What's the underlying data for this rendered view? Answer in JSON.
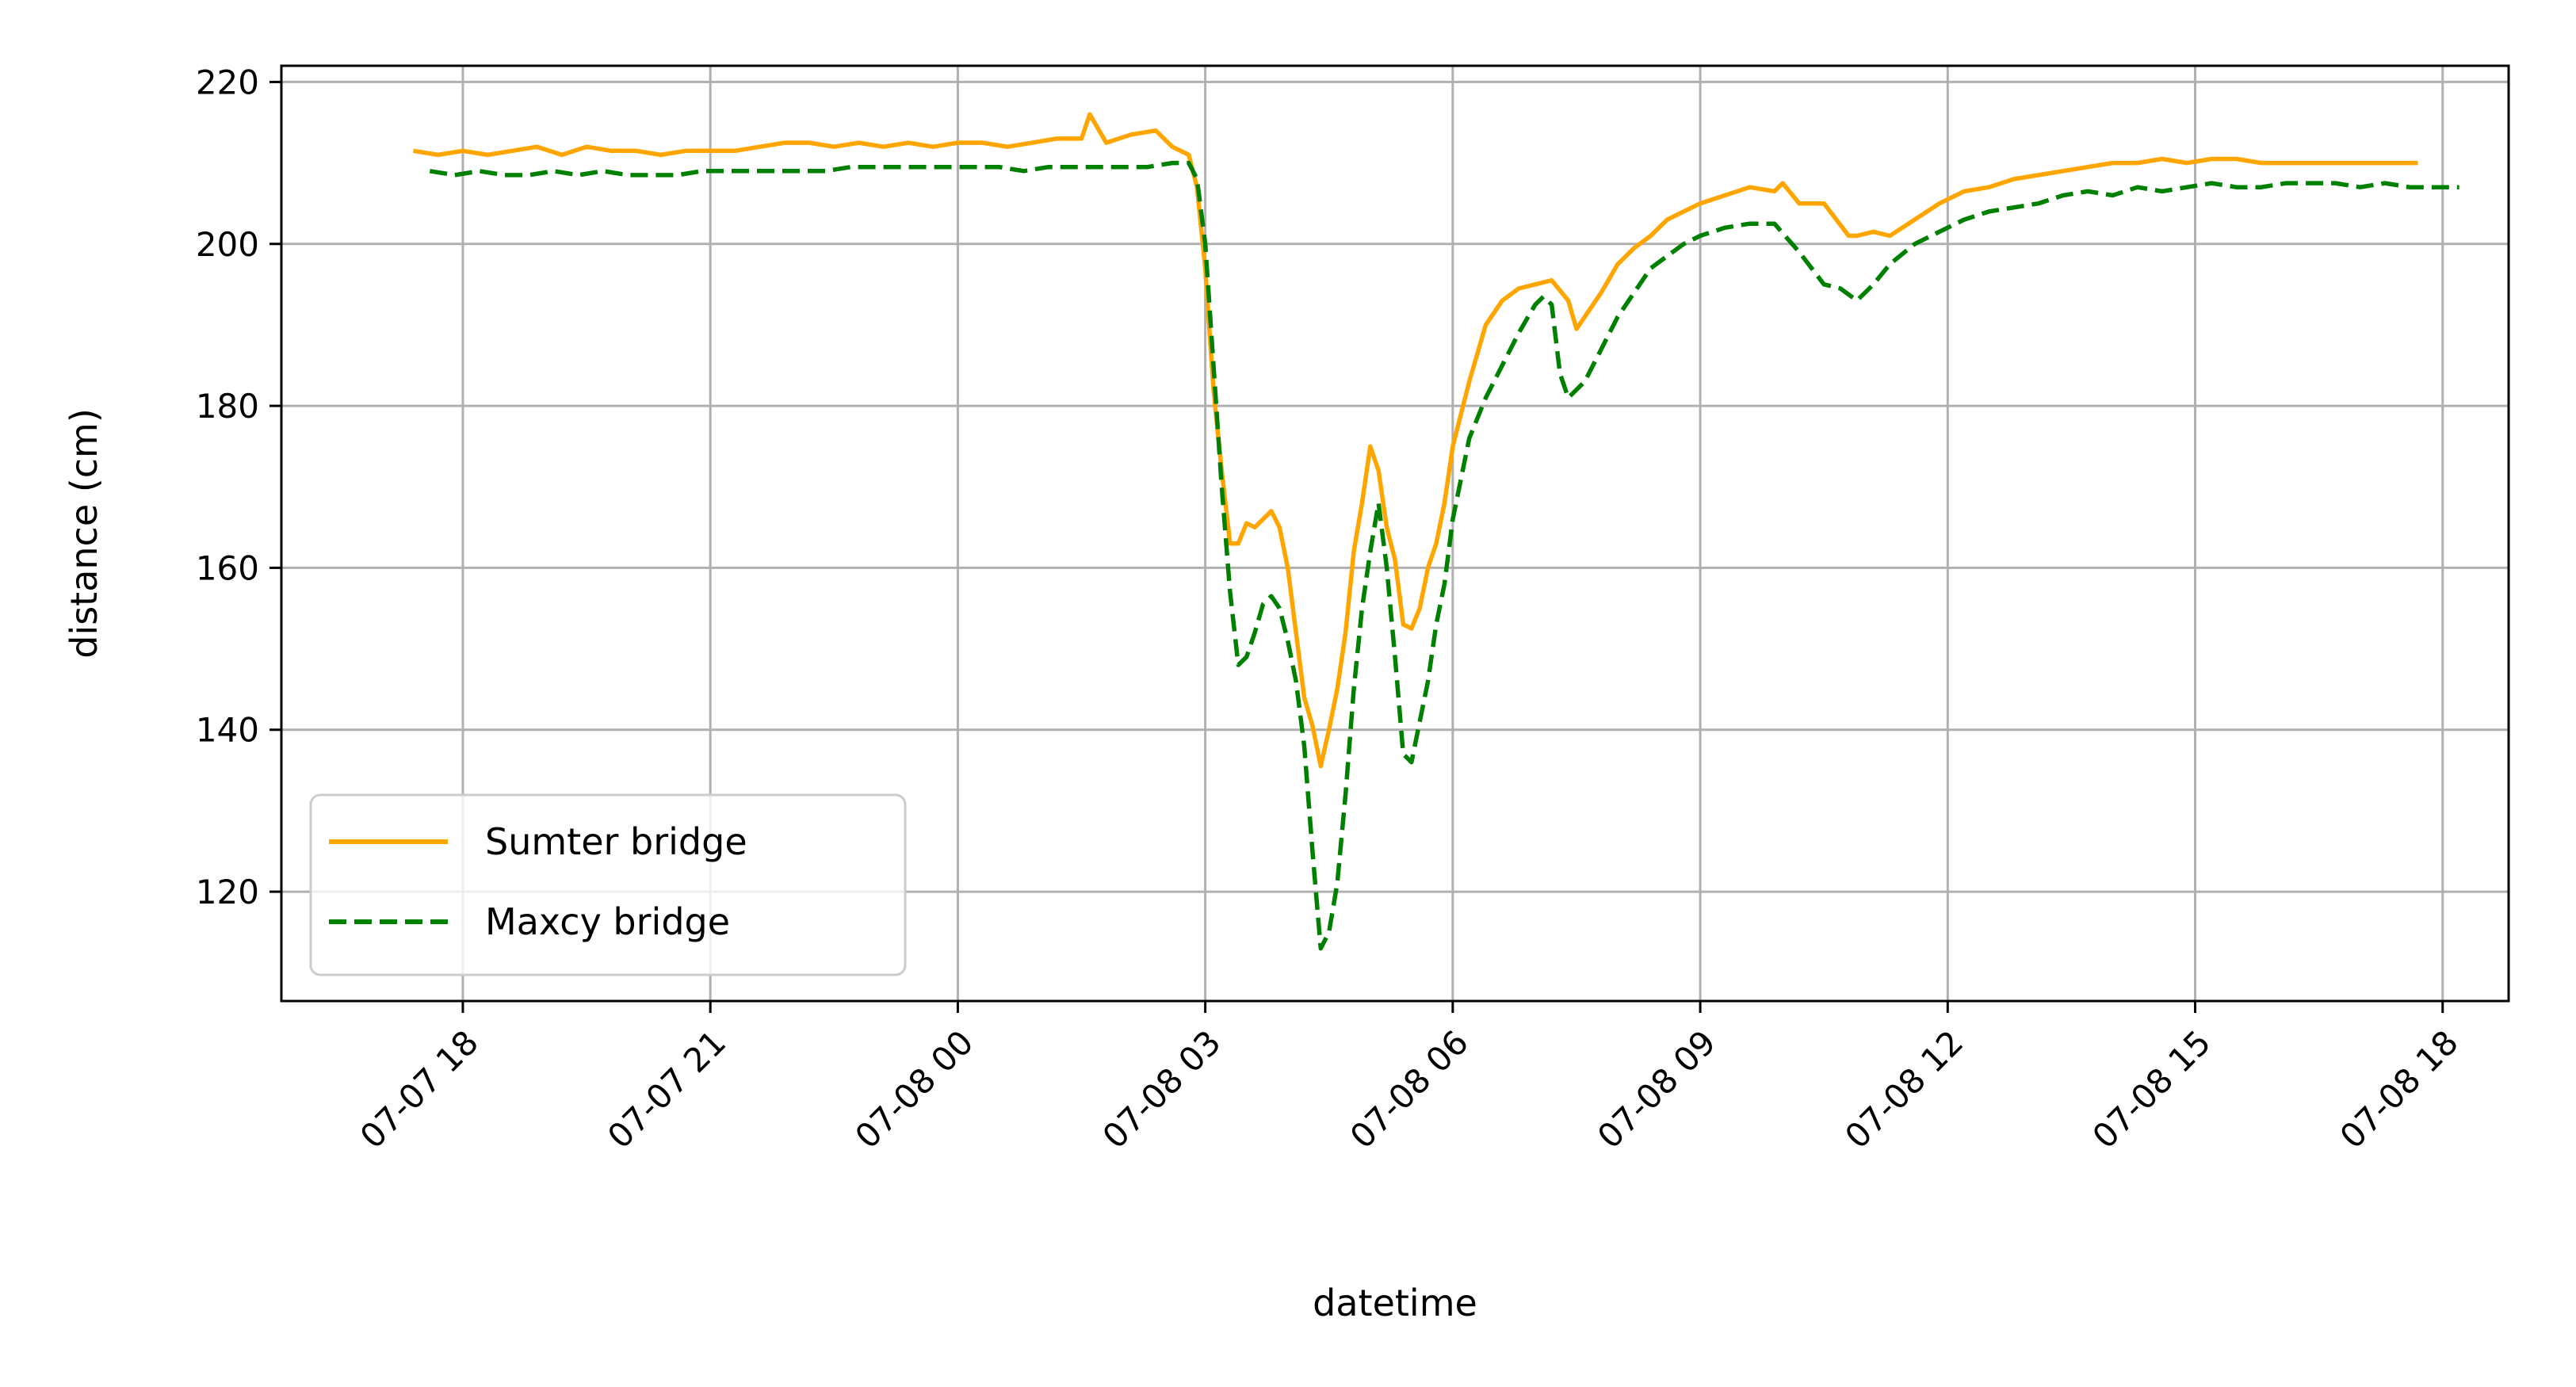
{
  "chart_data": {
    "type": "line",
    "xlabel": "datetime",
    "ylabel": "distance (cm)",
    "x_tick_labels": [
      "07-07 18",
      "07-07 21",
      "07-08 00",
      "07-08 03",
      "07-08 06",
      "07-08 09",
      "07-08 12",
      "07-08 15",
      "07-08 18"
    ],
    "x_tick_hours": [
      18,
      21,
      24,
      27,
      30,
      33,
      36,
      39,
      42
    ],
    "x_tick_rotation": 45,
    "y_ticks": [
      120,
      140,
      160,
      180,
      200,
      220
    ],
    "y_tick_labels": [
      "120",
      "140",
      "160",
      "180",
      "200",
      "220"
    ],
    "xlim": [
      "2007-07-07T15:48",
      "2007-07-08T18:48"
    ],
    "xlim_hours": [
      15.8,
      42.8
    ],
    "ylim": [
      106.5,
      222
    ],
    "x_axis_note": "x values are hours since 07-07 00:00 (07-08 = 24+)",
    "grid": true,
    "legend_position": "lower-left",
    "series": [
      {
        "name": "Sumter bridge",
        "color": "#ffa500",
        "linestyle": "solid",
        "x": [
          17.4,
          17.7,
          18.0,
          18.3,
          18.6,
          18.9,
          19.2,
          19.5,
          19.8,
          20.1,
          20.4,
          20.7,
          21.0,
          21.3,
          21.6,
          21.9,
          22.2,
          22.5,
          22.8,
          23.1,
          23.4,
          23.7,
          24.0,
          24.3,
          24.6,
          24.9,
          25.2,
          25.5,
          25.6,
          25.8,
          26.1,
          26.4,
          26.6,
          26.8,
          26.9,
          27.0,
          27.1,
          27.2,
          27.3,
          27.4,
          27.5,
          27.6,
          27.7,
          27.8,
          27.9,
          28.0,
          28.2,
          28.3,
          28.4,
          28.5,
          28.6,
          28.7,
          28.8,
          28.9,
          29.0,
          29.1,
          29.2,
          29.3,
          29.4,
          29.5,
          29.6,
          29.7,
          29.8,
          29.9,
          30.0,
          30.2,
          30.4,
          30.6,
          30.8,
          31.0,
          31.2,
          31.4,
          31.5,
          31.6,
          31.8,
          32.0,
          32.2,
          32.4,
          32.6,
          32.8,
          33.0,
          33.3,
          33.6,
          33.9,
          34.0,
          34.2,
          34.5,
          34.8,
          34.9,
          35.1,
          35.3,
          35.6,
          35.9,
          36.2,
          36.5,
          36.8,
          37.1,
          37.4,
          37.7,
          38.0,
          38.3,
          38.6,
          38.9,
          39.2,
          39.5,
          39.8,
          40.1,
          40.4,
          40.7,
          41.0,
          41.3,
          41.6,
          41.7
        ],
        "y": [
          211.5,
          211.0,
          211.5,
          211.0,
          211.5,
          212.0,
          211.0,
          212.0,
          211.5,
          211.5,
          211.0,
          211.5,
          211.5,
          211.5,
          212.0,
          212.5,
          212.5,
          212.0,
          212.5,
          212.0,
          212.5,
          212.0,
          212.5,
          212.5,
          212.0,
          212.5,
          213.0,
          213.0,
          216.0,
          212.5,
          213.5,
          214.0,
          212.0,
          211.0,
          207.0,
          197.0,
          182.0,
          172.0,
          163.0,
          163.0,
          165.5,
          165.0,
          166.0,
          167.0,
          165.0,
          160.0,
          144.0,
          140.5,
          135.5,
          140.0,
          145.0,
          152.0,
          162.0,
          168.0,
          175.0,
          172.0,
          165.0,
          161.0,
          153.0,
          152.5,
          155.0,
          160.0,
          163.0,
          168.0,
          175.0,
          183.0,
          190.0,
          193.0,
          194.5,
          195.0,
          195.5,
          193.0,
          189.5,
          191.0,
          194.0,
          197.5,
          199.5,
          201.0,
          203.0,
          204.0,
          205.0,
          206.0,
          207.0,
          206.5,
          207.5,
          205.0,
          205.0,
          201.0,
          201.0,
          201.5,
          201.0,
          203.0,
          205.0,
          206.5,
          207.0,
          208.0,
          208.5,
          209.0,
          209.5,
          210.0,
          210.0,
          210.5,
          210.0,
          210.5,
          210.5,
          210.0,
          210.0,
          210.0,
          210.0,
          210.0,
          210.0,
          210.0,
          210.0
        ]
      },
      {
        "name": "Maxcy bridge",
        "color": "#008000",
        "linestyle": "dashed",
        "x": [
          17.6,
          17.9,
          18.2,
          18.5,
          18.8,
          19.1,
          19.4,
          19.7,
          20.0,
          20.3,
          20.6,
          20.9,
          21.2,
          21.5,
          21.8,
          22.1,
          22.4,
          22.7,
          23.0,
          23.3,
          23.6,
          23.9,
          24.2,
          24.5,
          24.8,
          25.1,
          25.4,
          25.7,
          26.0,
          26.3,
          26.6,
          26.8,
          26.9,
          27.0,
          27.1,
          27.2,
          27.3,
          27.4,
          27.5,
          27.6,
          27.7,
          27.8,
          27.9,
          28.0,
          28.1,
          28.2,
          28.3,
          28.4,
          28.5,
          28.6,
          28.7,
          28.8,
          28.9,
          29.0,
          29.1,
          29.2,
          29.3,
          29.4,
          29.5,
          29.6,
          29.7,
          29.8,
          29.9,
          30.0,
          30.2,
          30.4,
          30.6,
          30.8,
          31.0,
          31.1,
          31.2,
          31.3,
          31.4,
          31.6,
          31.8,
          32.0,
          32.2,
          32.4,
          32.6,
          32.8,
          33.0,
          33.3,
          33.6,
          33.9,
          34.2,
          34.5,
          34.7,
          34.9,
          35.1,
          35.3,
          35.6,
          35.9,
          36.2,
          36.5,
          36.8,
          37.1,
          37.4,
          37.7,
          38.0,
          38.3,
          38.6,
          38.9,
          39.2,
          39.5,
          39.8,
          40.1,
          40.4,
          40.7,
          41.0,
          41.3,
          41.6,
          41.9,
          42.2
        ],
        "y": [
          209.0,
          208.5,
          209.0,
          208.5,
          208.5,
          209.0,
          208.5,
          209.0,
          208.5,
          208.5,
          208.5,
          209.0,
          209.0,
          209.0,
          209.0,
          209.0,
          209.0,
          209.5,
          209.5,
          209.5,
          209.5,
          209.5,
          209.5,
          209.5,
          209.0,
          209.5,
          209.5,
          209.5,
          209.5,
          209.5,
          210.0,
          210.0,
          208.0,
          200.0,
          185.0,
          170.0,
          157.0,
          148.0,
          149.0,
          152.0,
          155.5,
          156.5,
          155.0,
          151.0,
          146.0,
          138.0,
          125.0,
          113.0,
          115.0,
          121.0,
          132.0,
          145.0,
          155.0,
          162.0,
          168.0,
          160.0,
          149.0,
          137.0,
          136.0,
          141.0,
          146.0,
          153.0,
          158.0,
          166.0,
          176.0,
          181.0,
          185.0,
          189.0,
          192.5,
          193.5,
          192.5,
          184.0,
          181.0,
          183.0,
          187.0,
          191.0,
          194.0,
          197.0,
          198.5,
          200.0,
          201.0,
          202.0,
          202.5,
          202.5,
          199.0,
          195.0,
          194.5,
          193.0,
          195.0,
          197.5,
          200.0,
          201.5,
          203.0,
          204.0,
          204.5,
          205.0,
          206.0,
          206.5,
          206.0,
          207.0,
          206.5,
          207.0,
          207.5,
          207.0,
          207.0,
          207.5,
          207.5,
          207.5,
          207.0,
          207.5,
          207.0,
          207.0,
          207.0
        ]
      }
    ]
  }
}
